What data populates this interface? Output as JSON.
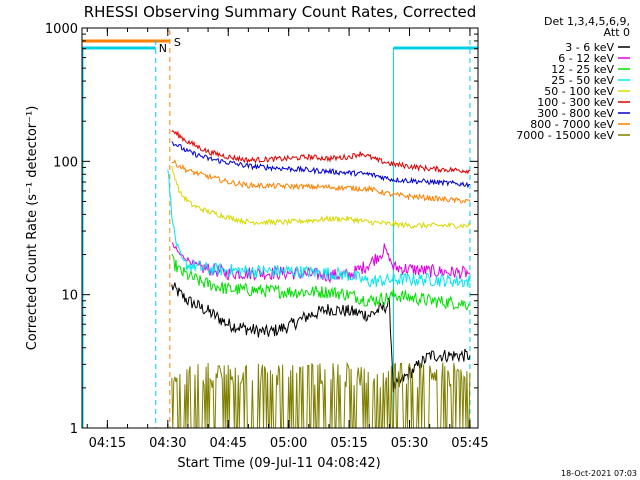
{
  "chart_data": {
    "type": "line",
    "title": "RHESSI Observing Summary Count Rates, Corrected",
    "ylabel": "Corrected Count Rate (s⁻¹ detector⁻¹)",
    "xlabel": "Start Time (09-Jul-11 04:08:42)",
    "y_scale": "log",
    "ylim": [
      1,
      1000
    ],
    "xlim": [
      "04:08:42",
      "05:47:00"
    ],
    "x_ticks": [
      "04:15",
      "04:30",
      "04:45",
      "05:00",
      "05:15",
      "05:30",
      "05:45"
    ],
    "y_ticks": [
      "1",
      "10",
      "100",
      "1000"
    ],
    "legend": {
      "placement": "top-right",
      "header": [
        "Det 1,3,4,5,6,9,",
        "Att 0"
      ]
    },
    "timestamp": "18-Oct-2021 07:03",
    "markers": [
      {
        "label": "S",
        "color": "#ff8000"
      },
      {
        "label": "N",
        "color": "#00d0e0"
      }
    ],
    "series": [
      {
        "name": "3 - 6 keV",
        "color": "#000000",
        "points": [
          [
            "04:31",
            11.5
          ],
          [
            "04:35",
            9
          ],
          [
            "04:40",
            7.5
          ],
          [
            "04:45",
            6
          ],
          [
            "04:50",
            5.5
          ],
          [
            "04:55",
            5.2
          ],
          [
            "05:00",
            5.8
          ],
          [
            "05:05",
            7
          ],
          [
            "05:10",
            7.8
          ],
          [
            "05:15",
            7.5
          ],
          [
            "05:20",
            7
          ],
          [
            "05:25",
            8.5
          ],
          [
            "05:26",
            2
          ],
          [
            "05:35",
            3.5
          ],
          [
            "05:45",
            3.5
          ]
        ]
      },
      {
        "name": "6 - 12 keV",
        "color": "#e000e0",
        "points": [
          [
            "04:31",
            24
          ],
          [
            "04:33",
            20
          ],
          [
            "04:38",
            16
          ],
          [
            "04:45",
            14.5
          ],
          [
            "05:00",
            14.5
          ],
          [
            "05:10",
            14
          ],
          [
            "05:15",
            14
          ],
          [
            "05:20",
            17
          ],
          [
            "05:24",
            22
          ],
          [
            "05:26",
            16
          ],
          [
            "05:35",
            15
          ],
          [
            "05:45",
            14.5
          ]
        ]
      },
      {
        "name": "12 - 25 keV",
        "color": "#00e000",
        "points": [
          [
            "04:31",
            18
          ],
          [
            "04:33",
            15
          ],
          [
            "04:38",
            12.5
          ],
          [
            "04:45",
            11
          ],
          [
            "05:00",
            10.5
          ],
          [
            "05:10",
            10.5
          ],
          [
            "05:15",
            10
          ],
          [
            "05:20",
            9
          ],
          [
            "05:25",
            9.5
          ],
          [
            "05:26",
            10
          ],
          [
            "05:35",
            9
          ],
          [
            "05:45",
            8.5
          ]
        ]
      },
      {
        "name": "25 - 50 keV",
        "color": "#00e8f0",
        "points": [
          [
            "04:30",
            90
          ],
          [
            "04:31",
            40
          ],
          [
            "04:32",
            25
          ],
          [
            "04:34",
            17
          ],
          [
            "04:40",
            15.5
          ],
          [
            "04:50",
            15
          ],
          [
            "05:00",
            15
          ],
          [
            "05:10",
            14.5
          ],
          [
            "05:15",
            14
          ],
          [
            "05:20",
            12.5
          ],
          [
            "05:26",
            13
          ],
          [
            "05:35",
            13
          ],
          [
            "05:45",
            12.5
          ]
        ]
      },
      {
        "name": "50 - 100 keV",
        "color": "#d8d800",
        "points": [
          [
            "04:31",
            90
          ],
          [
            "04:33",
            58
          ],
          [
            "04:36",
            47
          ],
          [
            "04:40",
            42
          ],
          [
            "04:45",
            38
          ],
          [
            "04:50",
            35
          ],
          [
            "05:00",
            35
          ],
          [
            "05:10",
            37
          ],
          [
            "05:15",
            37
          ],
          [
            "05:20",
            35
          ],
          [
            "05:30",
            33
          ],
          [
            "05:45",
            33
          ]
        ]
      },
      {
        "name": "100 - 300 keV",
        "color": "#e00000",
        "points": [
          [
            "04:31",
            170
          ],
          [
            "04:35",
            140
          ],
          [
            "04:40",
            118
          ],
          [
            "04:45",
            108
          ],
          [
            "04:50",
            102
          ],
          [
            "05:00",
            105
          ],
          [
            "05:05",
            108
          ],
          [
            "05:10",
            105
          ],
          [
            "05:15",
            108
          ],
          [
            "05:18",
            115
          ],
          [
            "05:22",
            102
          ],
          [
            "05:26",
            95
          ],
          [
            "05:35",
            88
          ],
          [
            "05:45",
            85
          ]
        ]
      },
      {
        "name": "300 - 800 keV",
        "color": "#0000d0",
        "points": [
          [
            "04:31",
            140
          ],
          [
            "04:35",
            118
          ],
          [
            "04:40",
            105
          ],
          [
            "04:45",
            98
          ],
          [
            "04:50",
            92
          ],
          [
            "05:00",
            88
          ],
          [
            "05:10",
            84
          ],
          [
            "05:20",
            80
          ],
          [
            "05:26",
            73
          ],
          [
            "05:35",
            70
          ],
          [
            "05:45",
            67
          ]
        ]
      },
      {
        "name": "800 - 7000 keV",
        "color": "#ff8000",
        "points": [
          [
            "04:31",
            100
          ],
          [
            "04:35",
            85
          ],
          [
            "04:40",
            77
          ],
          [
            "04:45",
            70
          ],
          [
            "04:50",
            66
          ],
          [
            "05:00",
            65
          ],
          [
            "05:10",
            64
          ],
          [
            "05:20",
            62
          ],
          [
            "05:26",
            56
          ],
          [
            "05:35",
            53
          ],
          [
            "05:45",
            50
          ]
        ]
      },
      {
        "name": "7000 - 15000 keV",
        "color": "#808000",
        "points": [
          [
            "04:31",
            2.5
          ],
          [
            "04:45",
            2.6
          ],
          [
            "05:00",
            2.6
          ],
          [
            "05:15",
            2.6
          ],
          [
            "05:26",
            2.6
          ],
          [
            "05:35",
            2.5
          ],
          [
            "05:45",
            2.6
          ]
        ]
      }
    ]
  }
}
